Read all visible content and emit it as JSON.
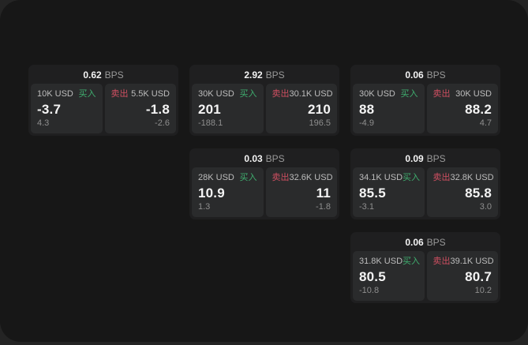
{
  "theme": {
    "backdrop": "#242424",
    "window_bg": "#171717",
    "card_bg": "#1f1f20",
    "panel_bg": "#2a2b2c",
    "buy_color": "#3fae6f",
    "sell_color": "#cf4f61",
    "text_primary": "#f4f4f4",
    "text_secondary": "#bdbdbd",
    "text_muted": "#8e8e8e",
    "text_muted2": "#9a9a9a"
  },
  "labels": {
    "bps_unit": "BPS",
    "buy": "买入",
    "sell": "卖出"
  },
  "cards": [
    {
      "bps": "0.62",
      "buy": {
        "amount": "10K USD",
        "price": "-3.7",
        "delta": "4.3"
      },
      "sell": {
        "amount": "5.5K USD",
        "price": "-1.8",
        "delta": "-2.6"
      }
    },
    {
      "bps": "2.92",
      "buy": {
        "amount": "30K USD",
        "price": "201",
        "delta": "-188.1"
      },
      "sell": {
        "amount": "30.1K USD",
        "price": "210",
        "delta": "196.5"
      }
    },
    {
      "bps": "0.06",
      "buy": {
        "amount": "30K USD",
        "price": "88",
        "delta": "-4.9"
      },
      "sell": {
        "amount": "30K USD",
        "price": "88.2",
        "delta": "4.7"
      }
    },
    {
      "bps": "0.03",
      "buy": {
        "amount": "28K USD",
        "price": "10.9",
        "delta": "1.3"
      },
      "sell": {
        "amount": "32.6K USD",
        "price": "11",
        "delta": "-1.8"
      }
    },
    {
      "bps": "0.09",
      "buy": {
        "amount": "34.1K USD",
        "price": "85.5",
        "delta": "-3.1"
      },
      "sell": {
        "amount": "32.8K USD",
        "price": "85.8",
        "delta": "3.0"
      }
    },
    {
      "bps": "0.06",
      "buy": {
        "amount": "31.8K USD",
        "price": "80.5",
        "delta": "-10.8"
      },
      "sell": {
        "amount": "39.1K USD",
        "price": "80.7",
        "delta": "10.2"
      }
    }
  ]
}
